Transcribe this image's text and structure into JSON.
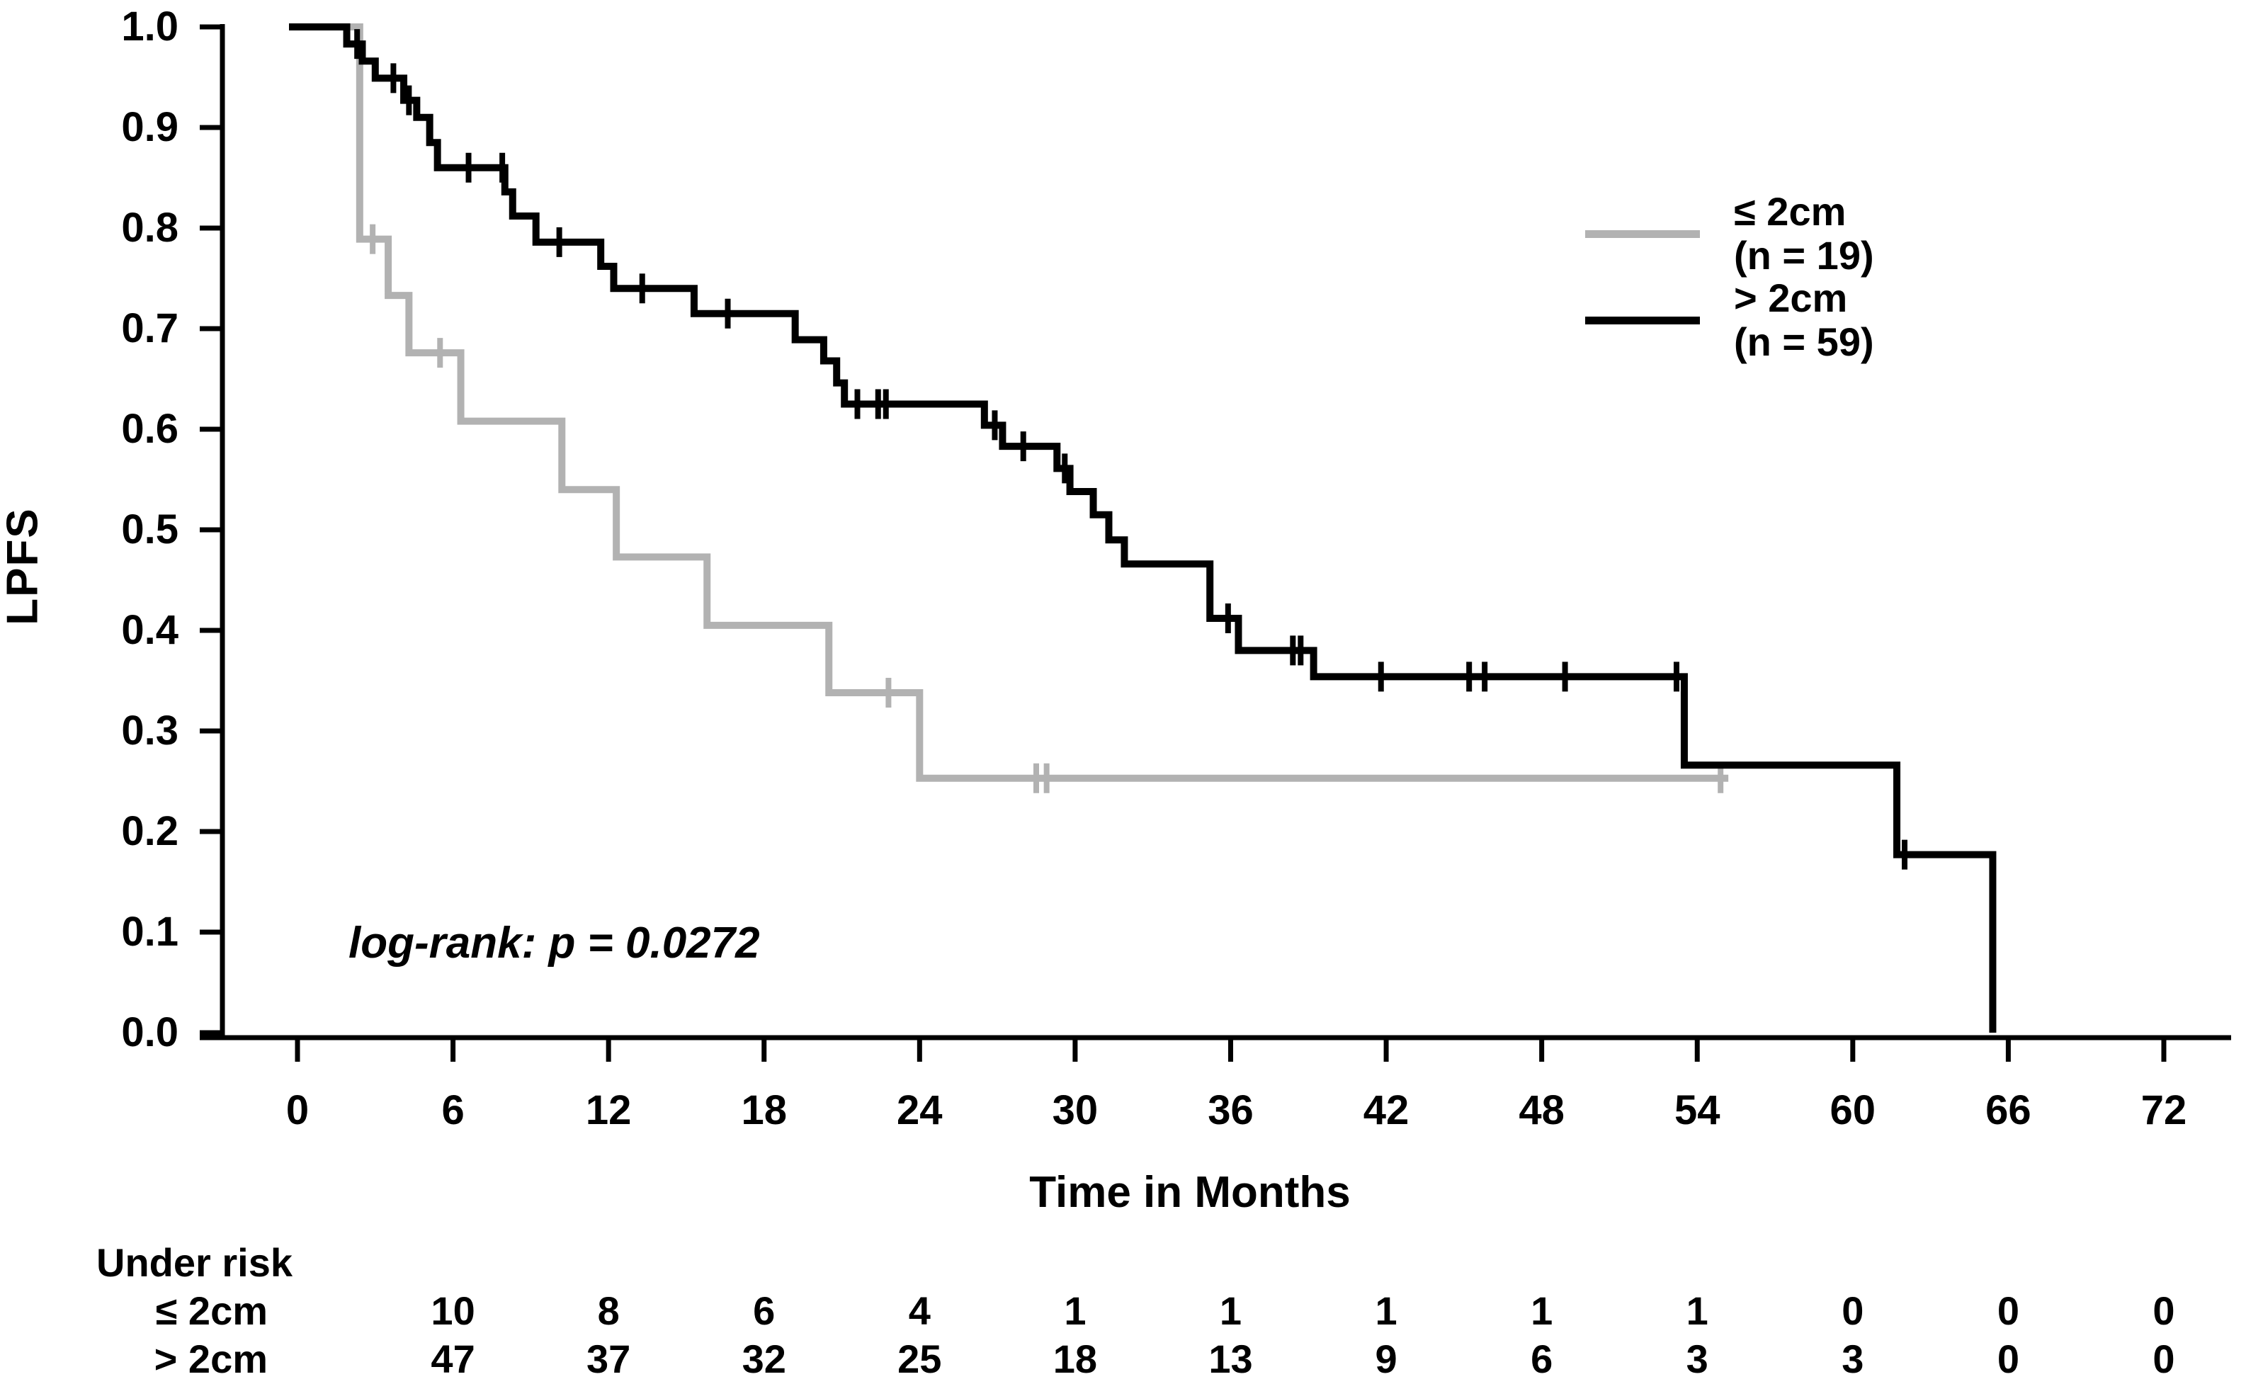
{
  "figure": {
    "background": "#ffffff",
    "y_axis": {
      "label": "LPFS",
      "tick_labels": [
        "1.0",
        "0.9",
        "0.8",
        "0.7",
        "0.6",
        "0.5",
        "0.4",
        "0.3",
        "0.2",
        "0.1",
        "0.0"
      ],
      "tick_values": [
        1.0,
        0.9,
        0.8,
        0.7,
        0.6,
        0.5,
        0.4,
        0.3,
        0.2,
        0.1,
        0.0
      ],
      "min": 0.0,
      "max": 1.0
    },
    "x_axis": {
      "label": "Time in Months",
      "tick_labels": [
        "0",
        "6",
        "12",
        "18",
        "24",
        "30",
        "36",
        "42",
        "48",
        "54",
        "60",
        "66",
        "72"
      ],
      "tick_values": [
        0,
        6,
        12,
        18,
        24,
        30,
        36,
        42,
        48,
        54,
        60,
        66,
        72
      ],
      "min": 0,
      "max": 72
    },
    "annotation": "log-rank: p = 0.0272"
  },
  "chart_data": {
    "type": "line",
    "subtype": "kaplan-meier-step",
    "title": "",
    "xlabel": "Time in Months",
    "ylabel": "LPFS",
    "xlim": [
      0,
      72
    ],
    "ylim": [
      0.0,
      1.0
    ],
    "grid": false,
    "legend_position": "upper right",
    "annotation": "log-rank: p = 0.0272",
    "series": [
      {
        "name": "le2cm",
        "label": "≤ 2cm",
        "sublabel": "(n = 19)",
        "color": "#b2b2b2",
        "end_x": 55.2,
        "steps": [
          [
            0,
            1.0
          ],
          [
            2.4,
            0.789
          ],
          [
            3.5,
            0.733
          ],
          [
            4.3,
            0.676
          ],
          [
            6.3,
            0.608
          ],
          [
            10.2,
            0.54
          ],
          [
            12.3,
            0.473
          ],
          [
            15.8,
            0.405
          ],
          [
            20.5,
            0.338
          ],
          [
            24.0,
            0.253
          ]
        ],
        "censors": [
          [
            2.9,
            0.789
          ],
          [
            5.5,
            0.676
          ],
          [
            22.8,
            0.338
          ],
          [
            28.5,
            0.253
          ],
          [
            28.9,
            0.253
          ],
          [
            54.9,
            0.253
          ]
        ]
      },
      {
        "name": "gt2cm",
        "label": "> 2cm",
        "sublabel": "(n = 59)",
        "color": "#000000",
        "end_x": 65.4,
        "steps": [
          [
            0,
            1.0
          ],
          [
            1.9,
            0.983
          ],
          [
            2.5,
            0.966
          ],
          [
            3.0,
            0.949
          ],
          [
            4.1,
            0.927
          ],
          [
            4.6,
            0.91
          ],
          [
            5.1,
            0.885
          ],
          [
            5.4,
            0.86
          ],
          [
            8.0,
            0.836
          ],
          [
            8.3,
            0.812
          ],
          [
            9.2,
            0.786
          ],
          [
            11.7,
            0.762
          ],
          [
            12.2,
            0.74
          ],
          [
            15.3,
            0.715
          ],
          [
            19.2,
            0.689
          ],
          [
            20.3,
            0.668
          ],
          [
            20.8,
            0.646
          ],
          [
            21.1,
            0.625
          ],
          [
            26.5,
            0.604
          ],
          [
            27.2,
            0.583
          ],
          [
            29.3,
            0.561
          ],
          [
            29.8,
            0.538
          ],
          [
            30.7,
            0.515
          ],
          [
            31.3,
            0.49
          ],
          [
            31.9,
            0.466
          ],
          [
            35.2,
            0.412
          ],
          [
            36.3,
            0.38
          ],
          [
            39.2,
            0.354
          ],
          [
            53.5,
            0.266
          ],
          [
            61.7,
            0.177
          ],
          [
            65.4,
            0.0
          ]
        ],
        "censors": [
          [
            2.3,
            0.983
          ],
          [
            3.7,
            0.949
          ],
          [
            4.3,
            0.927
          ],
          [
            6.6,
            0.86
          ],
          [
            7.9,
            0.86
          ],
          [
            10.1,
            0.786
          ],
          [
            13.3,
            0.74
          ],
          [
            16.6,
            0.715
          ],
          [
            21.6,
            0.625
          ],
          [
            22.4,
            0.625
          ],
          [
            22.7,
            0.625
          ],
          [
            26.9,
            0.604
          ],
          [
            28.0,
            0.583
          ],
          [
            29.6,
            0.561
          ],
          [
            35.9,
            0.412
          ],
          [
            38.4,
            0.38
          ],
          [
            38.7,
            0.38
          ],
          [
            41.8,
            0.354
          ],
          [
            45.2,
            0.354
          ],
          [
            45.8,
            0.354
          ],
          [
            48.9,
            0.354
          ],
          [
            53.2,
            0.354
          ],
          [
            62.0,
            0.177
          ]
        ]
      }
    ]
  },
  "risk_table": {
    "title": "Under risk",
    "months": [
      6,
      12,
      18,
      24,
      30,
      36,
      42,
      48,
      54,
      60,
      66,
      72
    ],
    "rows": [
      {
        "label": "≤ 2cm",
        "counts": [
          10,
          8,
          6,
          4,
          1,
          1,
          1,
          1,
          1,
          0,
          0,
          0
        ]
      },
      {
        "label": "> 2cm",
        "counts": [
          47,
          37,
          32,
          25,
          18,
          13,
          9,
          6,
          3,
          3,
          0,
          0
        ]
      }
    ]
  }
}
